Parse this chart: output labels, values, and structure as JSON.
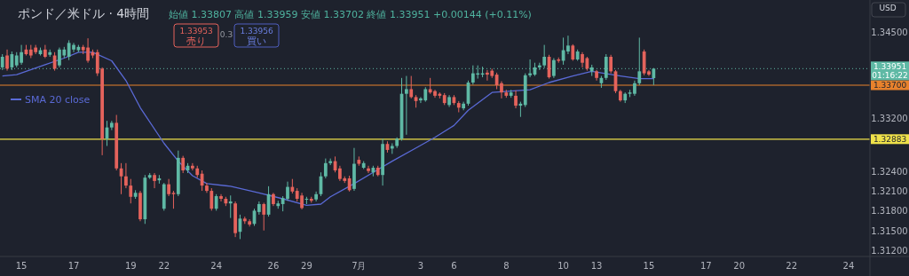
{
  "chart_data": {
    "type": "candlestick",
    "title": "ポンド／米ドル · 4時間",
    "subtitle": "始値 1.33807 高値 1.33959 安値 1.33702 終値 1.33951 +0.00144 (+0.11%)",
    "categories": [
      null,
      null,
      null,
      null,
      "15",
      null,
      null,
      null,
      null,
      null,
      null,
      null,
      null,
      null,
      null,
      "17",
      null,
      null,
      null,
      null,
      null,
      null,
      null,
      null,
      null,
      null,
      null,
      "19",
      null,
      null,
      null,
      null,
      null,
      null,
      "22",
      null,
      null,
      null,
      null,
      null,
      null,
      null,
      null,
      null,
      null,
      "24",
      null,
      null,
      null,
      null,
      null,
      null,
      null,
      null,
      null,
      null,
      null,
      "26",
      null,
      null,
      null,
      null,
      null,
      null,
      "29",
      null,
      null,
      null,
      null,
      null,
      null,
      null,
      null,
      null,
      null,
      "7月",
      null,
      null,
      null,
      null,
      null,
      null,
      null,
      null,
      null,
      null,
      null,
      null,
      "3",
      null,
      null,
      null,
      null,
      null,
      null,
      "6",
      null,
      null,
      null,
      null,
      null,
      null,
      null,
      null,
      null,
      null,
      "8",
      null,
      null,
      null,
      null,
      null,
      null,
      null,
      null,
      null,
      null,
      null,
      "10",
      null,
      null,
      null,
      null,
      null,
      null,
      "13",
      null,
      null,
      null,
      null,
      null,
      null,
      null,
      null,
      null,
      null,
      "15",
      null,
      null,
      null,
      null,
      null,
      null,
      null,
      null,
      null,
      null,
      null,
      "17",
      null,
      null,
      null,
      null,
      null,
      null,
      "20",
      null,
      null,
      null,
      null,
      null,
      null,
      null,
      null,
      null,
      null,
      "22",
      null,
      null,
      null,
      null,
      null,
      null,
      null,
      null,
      null,
      null,
      null,
      "24",
      null,
      null,
      null,
      null
    ],
    "ohlc": [
      [
        1.3397,
        1.3417,
        1.3393,
        1.3413
      ],
      [
        1.3415,
        1.3424,
        1.3392,
        1.3395
      ],
      [
        1.3397,
        1.3421,
        1.3393,
        1.3417
      ],
      [
        1.34,
        1.342,
        1.3397,
        1.3415
      ],
      [
        1.3404,
        1.3431,
        1.3401,
        1.342
      ],
      [
        1.3424,
        1.3431,
        1.3415,
        1.3417
      ],
      [
        1.3424,
        1.3431,
        1.3411,
        1.3415
      ],
      [
        1.3427,
        1.3431,
        1.3417,
        1.342
      ],
      [
        1.3417,
        1.3427,
        1.3415,
        1.3423
      ],
      [
        1.3424,
        1.3431,
        1.3411,
        1.3413
      ],
      [
        1.3416,
        1.3424,
        1.3413,
        1.342
      ],
      [
        1.3415,
        1.342,
        1.3392,
        1.3395
      ],
      [
        1.34,
        1.3427,
        1.3397,
        1.3424
      ],
      [
        1.3415,
        1.3428,
        1.3411,
        1.3424
      ],
      [
        1.3413,
        1.3438,
        1.3408,
        1.3434
      ],
      [
        1.3424,
        1.3434,
        1.342,
        1.3431
      ],
      [
        1.3423,
        1.3431,
        1.342,
        1.3428
      ],
      [
        1.3428,
        1.3431,
        1.3417,
        1.3423
      ],
      [
        1.3427,
        1.3441,
        1.3404,
        1.3407
      ],
      [
        1.342,
        1.3424,
        1.3411,
        1.3415
      ],
      [
        1.342,
        1.3424,
        1.3384,
        1.3388
      ],
      [
        1.3395,
        1.3397,
        1.3264,
        1.3289
      ],
      [
        1.3289,
        1.3316,
        1.3278,
        1.3306
      ],
      [
        1.3306,
        1.3316,
        1.3302,
        1.3313
      ],
      [
        1.3313,
        1.3325,
        1.3241,
        1.3244
      ],
      [
        1.3244,
        1.3252,
        1.3205,
        1.3232
      ],
      [
        1.3232,
        1.3252,
        1.3214,
        1.3218
      ],
      [
        1.3218,
        1.3228,
        1.3191,
        1.3201
      ],
      [
        1.3201,
        1.3211,
        1.3198,
        1.3207
      ],
      [
        1.3207,
        1.321,
        1.3164,
        1.3167
      ],
      [
        1.3167,
        1.3234,
        1.316,
        1.323
      ],
      [
        1.323,
        1.3237,
        1.3228,
        1.3234
      ],
      [
        1.3234,
        1.3237,
        1.3214,
        1.3225
      ],
      [
        1.3226,
        1.3234,
        1.3221,
        1.3229
      ],
      [
        1.3183,
        1.3222,
        1.318,
        1.322
      ],
      [
        1.322,
        1.3228,
        1.3202,
        1.3205
      ],
      [
        1.3207,
        1.321,
        1.3183,
        1.3205
      ],
      [
        1.3205,
        1.3271,
        1.3202,
        1.326
      ],
      [
        1.326,
        1.3263,
        1.3237,
        1.3241
      ],
      [
        1.3241,
        1.3252,
        1.3237,
        1.3248
      ],
      [
        1.3248,
        1.3252,
        1.3241,
        1.3244
      ],
      [
        1.3244,
        1.3248,
        1.323,
        1.3234
      ],
      [
        1.3236,
        1.3241,
        1.321,
        1.3218
      ],
      [
        1.3218,
        1.3222,
        1.3207,
        1.321
      ],
      [
        1.321,
        1.3214,
        1.318,
        1.3183
      ],
      [
        1.3183,
        1.3205,
        1.318,
        1.3202
      ],
      [
        1.3202,
        1.3205,
        1.3194,
        1.3198
      ],
      [
        1.3198,
        1.3201,
        1.3187,
        1.3191
      ],
      [
        1.3191,
        1.3203,
        1.3169,
        1.3194
      ],
      [
        1.3191,
        1.3194,
        1.314,
        1.3146
      ],
      [
        1.3148,
        1.3174,
        1.3137,
        1.3168
      ],
      [
        1.3168,
        1.3171,
        1.316,
        1.3164
      ],
      [
        1.3164,
        1.3167,
        1.3156,
        1.3159
      ],
      [
        1.316,
        1.3183,
        1.3157,
        1.318
      ],
      [
        1.3178,
        1.3194,
        1.3174,
        1.319
      ],
      [
        1.319,
        1.3192,
        1.315,
        1.3174
      ],
      [
        1.3174,
        1.3217,
        1.3171,
        1.3205
      ],
      [
        1.3205,
        1.3207,
        1.3187,
        1.319
      ],
      [
        1.3187,
        1.3195,
        1.3183,
        1.3191
      ],
      [
        1.319,
        1.3202,
        1.3179,
        1.3199
      ],
      [
        1.3198,
        1.3224,
        1.3195,
        1.3216
      ],
      [
        1.3216,
        1.3228,
        1.3206,
        1.3209
      ],
      [
        1.321,
        1.3214,
        1.3194,
        1.3198
      ],
      [
        1.3203,
        1.3207,
        1.3182,
        1.3184
      ],
      [
        1.3197,
        1.3201,
        1.319,
        1.3198
      ],
      [
        1.3198,
        1.3201,
        1.3192,
        1.3195
      ],
      [
        1.3197,
        1.3209,
        1.3194,
        1.3205
      ],
      [
        1.3205,
        1.3238,
        1.3202,
        1.3232
      ],
      [
        1.3232,
        1.3259,
        1.3229,
        1.3252
      ],
      [
        1.3252,
        1.3259,
        1.3249,
        1.3255
      ],
      [
        1.3255,
        1.3262,
        1.3238,
        1.3241
      ],
      [
        1.3244,
        1.3248,
        1.3225,
        1.3228
      ],
      [
        1.3229,
        1.3232,
        1.3222,
        1.3225
      ],
      [
        1.3229,
        1.3233,
        1.3209,
        1.3211
      ],
      [
        1.3213,
        1.3275,
        1.321,
        1.3251
      ],
      [
        1.3257,
        1.3262,
        1.3248,
        1.3251
      ],
      [
        1.3245,
        1.3255,
        1.3243,
        1.3252
      ],
      [
        1.3244,
        1.3248,
        1.3237,
        1.324
      ],
      [
        1.3238,
        1.3248,
        1.3232,
        1.3245
      ],
      [
        1.3245,
        1.3248,
        1.3232,
        1.3234
      ],
      [
        1.3234,
        1.3289,
        1.3218,
        1.3281
      ],
      [
        1.3281,
        1.3285,
        1.3268,
        1.3272
      ],
      [
        1.3274,
        1.3282,
        1.3266,
        1.3278
      ],
      [
        1.3278,
        1.3291,
        1.3275,
        1.3289
      ],
      [
        1.3289,
        1.3381,
        1.3286,
        1.3357
      ],
      [
        1.3357,
        1.3384,
        1.3295,
        1.3364
      ],
      [
        1.3364,
        1.3384,
        1.335,
        1.3352
      ],
      [
        1.3352,
        1.3355,
        1.3336,
        1.3346
      ],
      [
        1.3347,
        1.3352,
        1.3343,
        1.335
      ],
      [
        1.3347,
        1.3367,
        1.3345,
        1.3364
      ],
      [
        1.3364,
        1.3381,
        1.3357,
        1.3359
      ],
      [
        1.3361,
        1.3363,
        1.3351,
        1.3354
      ],
      [
        1.3357,
        1.3359,
        1.335,
        1.3354
      ],
      [
        1.3355,
        1.3358,
        1.334,
        1.3343
      ],
      [
        1.334,
        1.3355,
        1.3337,
        1.3352
      ],
      [
        1.3352,
        1.3355,
        1.334,
        1.3343
      ],
      [
        1.3343,
        1.3346,
        1.3329,
        1.3336
      ],
      [
        1.3335,
        1.3345,
        1.3332,
        1.3342
      ],
      [
        1.3342,
        1.3377,
        1.3339,
        1.3374
      ],
      [
        1.3374,
        1.34,
        1.3371,
        1.3388
      ],
      [
        1.3386,
        1.34,
        1.338,
        1.3388
      ],
      [
        1.3386,
        1.3398,
        1.3382,
        1.3388
      ],
      [
        1.3389,
        1.3393,
        1.3377,
        1.3386
      ],
      [
        1.3392,
        1.3395,
        1.3381,
        1.3384
      ],
      [
        1.3386,
        1.3389,
        1.3364,
        1.337
      ],
      [
        1.3373,
        1.3376,
        1.335,
        1.3359
      ],
      [
        1.3359,
        1.3363,
        1.3351,
        1.3354
      ],
      [
        1.3354,
        1.3363,
        1.3351,
        1.3359
      ],
      [
        1.3354,
        1.3362,
        1.3335,
        1.3339
      ],
      [
        1.3339,
        1.3345,
        1.3322,
        1.3342
      ],
      [
        1.334,
        1.3388,
        1.3337,
        1.3385
      ],
      [
        1.3385,
        1.3409,
        1.3382,
        1.3388
      ],
      [
        1.3386,
        1.3404,
        1.3384,
        1.3397
      ],
      [
        1.3397,
        1.3404,
        1.3393,
        1.34
      ],
      [
        1.34,
        1.3431,
        1.3396,
        1.3413
      ],
      [
        1.3413,
        1.3416,
        1.338,
        1.3382
      ],
      [
        1.3384,
        1.3411,
        1.3381,
        1.3408
      ],
      [
        1.3409,
        1.3412,
        1.3404,
        1.3407
      ],
      [
        1.3407,
        1.3442,
        1.3401,
        1.3423
      ],
      [
        1.3421,
        1.3445,
        1.3417,
        1.343
      ],
      [
        1.343,
        1.3432,
        1.3407,
        1.3409
      ],
      [
        1.3409,
        1.3424,
        1.3407,
        1.3421
      ],
      [
        1.3417,
        1.342,
        1.3397,
        1.3404
      ],
      [
        1.3411,
        1.3413,
        1.3392,
        1.3395
      ],
      [
        1.3391,
        1.3401,
        1.3384,
        1.3397
      ],
      [
        1.3391,
        1.3393,
        1.3377,
        1.3381
      ],
      [
        1.3373,
        1.3384,
        1.3366,
        1.3381
      ],
      [
        1.3381,
        1.3417,
        1.3378,
        1.3413
      ],
      [
        1.3413,
        1.3416,
        1.3388,
        1.3391
      ],
      [
        1.3391,
        1.3393,
        1.3358,
        1.3361
      ],
      [
        1.3361,
        1.3363,
        1.3345,
        1.3347
      ],
      [
        1.3347,
        1.3359,
        1.3343,
        1.3357
      ],
      [
        1.3357,
        1.3363,
        1.3352,
        1.3359
      ],
      [
        1.3357,
        1.3377,
        1.3354,
        1.3373
      ],
      [
        1.3373,
        1.3442,
        1.337,
        1.3391
      ],
      [
        1.3421,
        1.3424,
        1.3385,
        1.3388
      ],
      [
        1.3391,
        1.3393,
        1.3384,
        1.3386
      ],
      [
        1.33807,
        1.33959,
        1.33702,
        1.33951
      ],
      null,
      null,
      null,
      null,
      null,
      null,
      null,
      null,
      null,
      null,
      null,
      null,
      null,
      null,
      null,
      null,
      null,
      null,
      null,
      null,
      null,
      null,
      null,
      null,
      null,
      null,
      null,
      null,
      null,
      null,
      null,
      null,
      null,
      null,
      null,
      null,
      null,
      null,
      null,
      null,
      null,
      null,
      null,
      null,
      null
    ],
    "series": [
      {
        "name": "SMA 20 close",
        "type": "line",
        "color": "#5a6ad6",
        "values": [
          1.3384,
          null,
          null,
          1.3386,
          null,
          null,
          null,
          null,
          null,
          1.3401,
          null,
          null,
          null,
          1.3411,
          null,
          null,
          1.342,
          null,
          null,
          1.342,
          null,
          null,
          null,
          1.3407,
          null,
          null,
          1.3377,
          null,
          null,
          1.3336,
          null,
          null,
          null,
          null,
          1.3282,
          null,
          null,
          1.3255,
          null,
          null,
          1.3233,
          null,
          null,
          1.3221,
          null,
          null,
          null,
          null,
          1.3217,
          null,
          null,
          null,
          null,
          null,
          1.3207,
          null,
          null,
          null,
          null,
          1.3198,
          null,
          null,
          null,
          null,
          1.3188,
          null,
          null,
          1.319,
          null,
          1.3201,
          null,
          null,
          null,
          null,
          1.3221,
          null,
          null,
          null,
          1.3238,
          null,
          null,
          null,
          1.3255,
          null,
          null,
          null,
          null,
          1.3275,
          null,
          null,
          null,
          1.3291,
          null,
          null,
          null,
          1.3309,
          null,
          null,
          1.3332,
          null,
          null,
          null,
          null,
          1.3359,
          null,
          null,
          null,
          1.3361,
          null,
          null,
          null,
          1.3363,
          null,
          null,
          null,
          1.3374,
          null,
          null,
          null,
          null,
          1.3384,
          null,
          null,
          null,
          1.3391,
          null,
          null,
          null,
          null,
          null,
          1.3384,
          null,
          null,
          null,
          1.338,
          null,
          null,
          1.338,
          null,
          null,
          null,
          null,
          null,
          null,
          null,
          null,
          null,
          null,
          null,
          null,
          null,
          null,
          null,
          null,
          null,
          null,
          null,
          null,
          null,
          null,
          null,
          null,
          null,
          null,
          null,
          null,
          null,
          null,
          null,
          null,
          null,
          null,
          null,
          null,
          null,
          null,
          null,
          null,
          null,
          null,
          null,
          null,
          null
        ]
      }
    ],
    "ylim": [
      1.3112,
      1.3499
    ],
    "yticks": [
      {
        "value": 1.345,
        "label": "1.34500"
      },
      {
        "value": 1.332,
        "label": "1.33200"
      },
      {
        "value": 1.324,
        "label": "1.32400"
      },
      {
        "value": 1.321,
        "label": "1.32100"
      },
      {
        "value": 1.318,
        "label": "1.31800"
      },
      {
        "value": 1.315,
        "label": "1.31500"
      },
      {
        "value": 1.312,
        "label": "1.31200"
      }
    ],
    "ref_lines": [
      {
        "axis": "y",
        "value": 1.337,
        "label": "1.33700",
        "color": "#e8822c",
        "line_style": "solid"
      },
      {
        "axis": "y",
        "value": 1.32883,
        "label": "1.32883",
        "color": "#efe14a",
        "line_style": "solid"
      },
      {
        "axis": "y",
        "value": 1.33951,
        "label": "1.33951 01:16:22",
        "color": "#5fb9a5",
        "line_style": "dotted"
      }
    ],
    "annotations": [
      "1.33953",
      "売り",
      "0.3",
      "1.33956",
      "買い",
      "USD"
    ],
    "legend": "top left"
  }
}
